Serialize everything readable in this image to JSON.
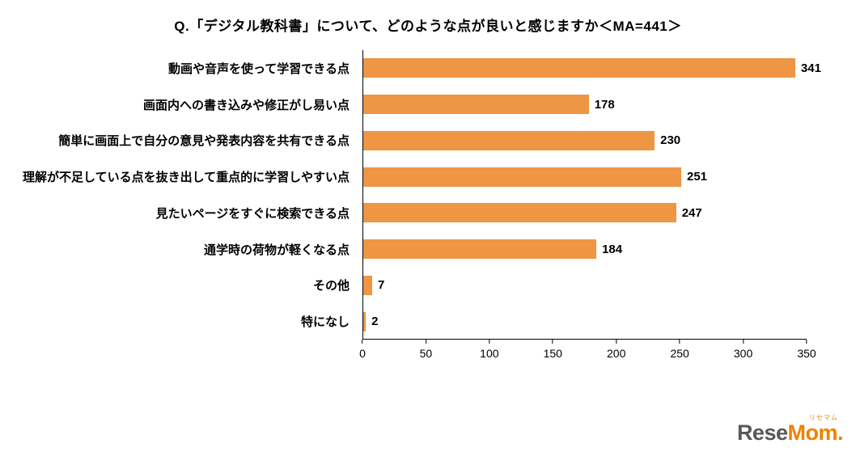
{
  "title": "Q.「デジタル教科書」について、どのような点が良いと感じますか＜MA=441＞",
  "chart_data": {
    "type": "bar",
    "orientation": "horizontal",
    "title": "Q.「デジタル教科書」について、どのような点が良いと感じますか＜MA=441＞",
    "categories": [
      "動画や音声を使って学習できる点",
      "画面内への書き込みや修正がし易い点",
      "簡単に画面上で自分の意見や発表内容を共有できる点",
      "理解が不足している点を抜き出して重点的に学習しやすい点",
      "見たいページをすぐに検索できる点",
      "通学時の荷物が軽くなる点",
      "その他",
      "特になし"
    ],
    "values": [
      341,
      178,
      230,
      251,
      247,
      184,
      7,
      2
    ],
    "xlim": [
      0,
      350
    ],
    "xticks": [
      0,
      50,
      100,
      150,
      200,
      250,
      300,
      350
    ],
    "bar_color": "#EE9644",
    "grid": false,
    "legend": "none"
  },
  "logo": {
    "ruby": "リセマム",
    "part1": "Rese",
    "part2": "Mom",
    "suffix": "."
  }
}
